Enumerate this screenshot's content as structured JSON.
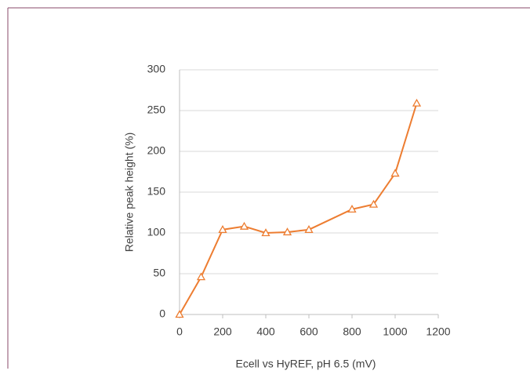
{
  "chart_data": {
    "type": "line",
    "x_label": "Ecell vs HyREF, pH 6.5 (mV)",
    "y_label": "Relative peak height (%)",
    "series": [
      {
        "color": "#ed7d31",
        "x": [
          0,
          100,
          200,
          300,
          400,
          500,
          600,
          800,
          900,
          1000,
          1100
        ],
        "values": [
          0,
          46,
          104,
          108,
          100,
          101,
          104,
          129,
          135,
          173,
          259
        ]
      }
    ],
    "xlim": [
      0,
      1200
    ],
    "xticks": [
      0,
      200,
      400,
      600,
      800,
      1000,
      1200
    ],
    "ylim": [
      0,
      300
    ],
    "yticks": [
      0,
      50,
      100,
      150,
      200,
      250,
      300
    ],
    "grid": true,
    "marker": "triangle"
  }
}
